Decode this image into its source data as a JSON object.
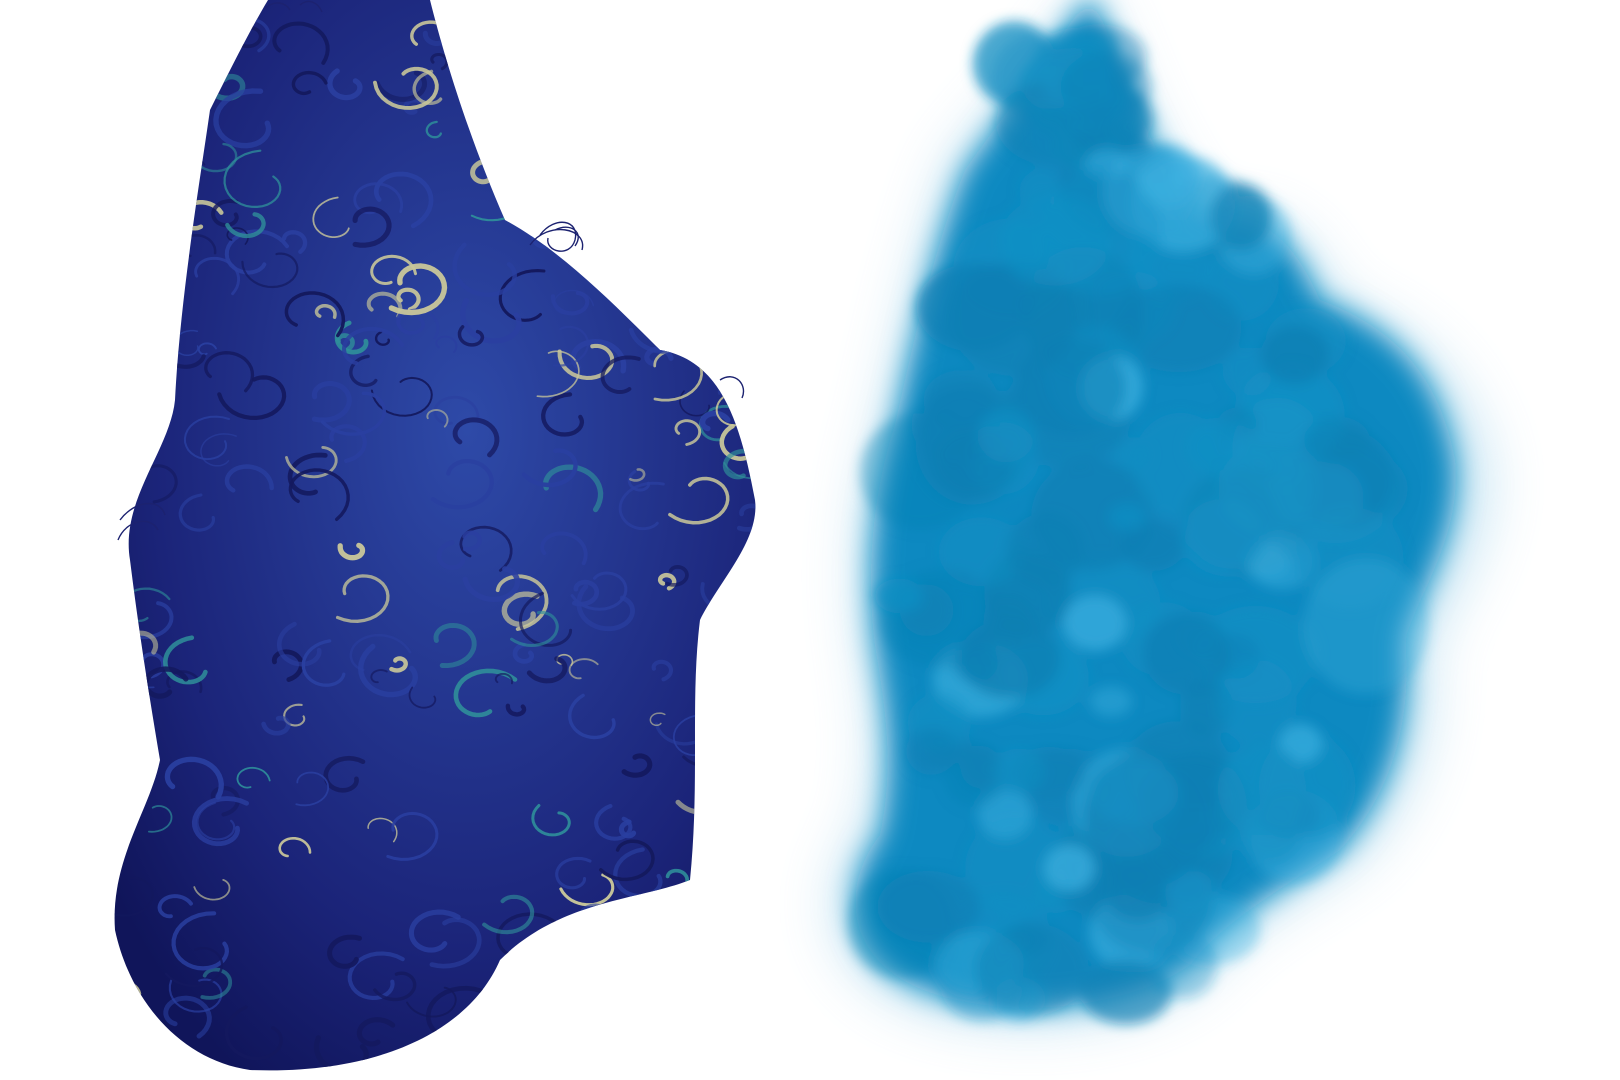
{
  "scene": {
    "background": "#ffffff",
    "left_render": {
      "subject": "streamline-render",
      "colors": {
        "dark": "#14195e",
        "mid": "#2a3fa0",
        "teal": "#2f8f9a",
        "highlight": "#c9c79a"
      }
    },
    "right_render": {
      "subject": "volume-smoke-render",
      "colors": {
        "core": "#0f7fb3",
        "mid": "#1590c4",
        "light": "#3aaede",
        "halo": "#9fd3ec"
      }
    }
  }
}
